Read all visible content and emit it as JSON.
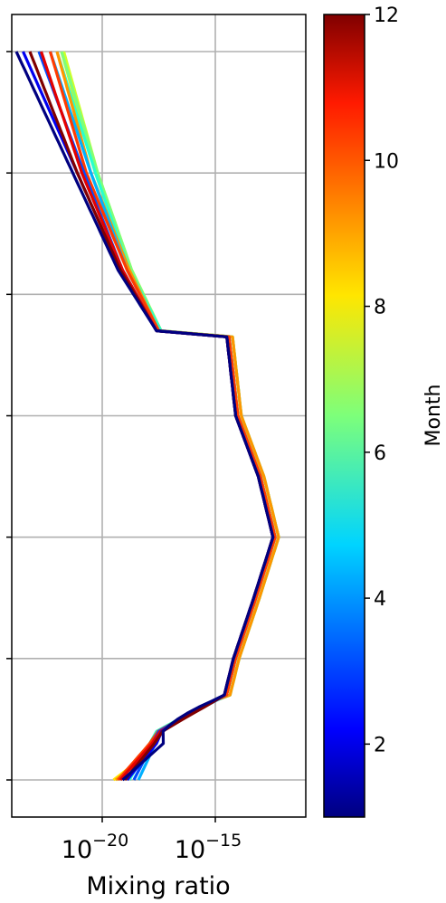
{
  "chart_data": {
    "type": "line",
    "xlabel": "Mixing ratio",
    "x_scale": "log",
    "xlim": [
      1e-24,
      1e-11
    ],
    "x_ticks": [
      {
        "value": 1e-20,
        "base": "10",
        "exp": "−20"
      },
      {
        "value": 1e-15,
        "base": "10",
        "exp": "−15"
      }
    ],
    "y_scale": "linear",
    "ylim": [
      0.5,
      -0.5
    ],
    "y_tick_values": [
      0,
      1,
      2,
      3,
      4,
      5,
      6
    ],
    "y_tick_labels_shown": false,
    "grid": true,
    "colorbar": {
      "label": "Month",
      "colormap": "jet",
      "range": [
        1,
        12
      ],
      "ticks": [
        "2",
        "4",
        "6",
        "8",
        "10",
        "12"
      ]
    },
    "base_profile": [
      {
        "level": 0.0,
        "log_mr": -16.9
      },
      {
        "level": 0.5,
        "log_mr": -16.8
      },
      {
        "level": 1.0,
        "log_mr": -16.7
      },
      {
        "level": 1.5,
        "log_mr": -16.2
      },
      {
        "level": 2.0,
        "log_mr": -14.6
      },
      {
        "level": 2.5,
        "log_mr": -14.3
      },
      {
        "level": 3.0,
        "log_mr": -14.0
      },
      {
        "level": 3.5,
        "log_mr": -13.0
      },
      {
        "level": 4.0,
        "log_mr": -12.35
      },
      {
        "level": 4.5,
        "log_mr": -13.2
      },
      {
        "level": 5.0,
        "log_mr": -14.1
      },
      {
        "level": 5.3,
        "log_mr": -14.5
      },
      {
        "level": 5.6,
        "log_mr": -15.8
      },
      {
        "level": 5.8,
        "log_mr": -17.8
      },
      {
        "level": 6.0,
        "log_mr": -19.2
      }
    ],
    "series": [
      {
        "month": 1,
        "color": "#000080",
        "profile": [
          [
            0,
            -23.8
          ],
          [
            1,
            -21.3
          ],
          [
            1.8,
            -19.3
          ],
          [
            2.3,
            -17.6
          ],
          [
            5.7,
            -17.3
          ],
          [
            6,
            -19.1
          ]
        ]
      },
      {
        "month": 2,
        "color": "#0000f1",
        "profile": [
          [
            0,
            -23.5
          ],
          [
            1,
            -21.1
          ],
          [
            1.8,
            -19.2
          ],
          [
            2.3,
            -17.6
          ],
          [
            5.4,
            -16.9
          ],
          [
            5.7,
            -17.6
          ],
          [
            6,
            -18.9
          ]
        ]
      },
      {
        "month": 3,
        "color": "#004cff",
        "profile": [
          [
            0,
            -22.8
          ],
          [
            1,
            -20.8
          ],
          [
            1.8,
            -19.1
          ],
          [
            2.3,
            -17.6
          ],
          [
            5.3,
            -16.4
          ],
          [
            5.6,
            -17.5
          ],
          [
            6,
            -18.6
          ]
        ]
      },
      {
        "month": 4,
        "color": "#00b0ff",
        "profile": [
          [
            0,
            -22.3
          ],
          [
            1,
            -20.5
          ],
          [
            1.8,
            -18.9
          ],
          [
            2.3,
            -17.5
          ],
          [
            5.3,
            -16.3
          ],
          [
            5.6,
            -17.4
          ],
          [
            6,
            -18.4
          ]
        ]
      },
      {
        "month": 5,
        "color": "#29ffce",
        "profile": [
          [
            0,
            -22.0
          ],
          [
            1,
            -20.3
          ],
          [
            1.8,
            -18.8
          ],
          [
            2.3,
            -17.4
          ],
          [
            5.3,
            -16.5
          ],
          [
            5.6,
            -17.6
          ],
          [
            6,
            -18.8
          ]
        ]
      },
      {
        "month": 6,
        "color": "#7dff7a",
        "profile": [
          [
            0,
            -21.8
          ],
          [
            1,
            -20.2
          ],
          [
            1.8,
            -18.7
          ],
          [
            2.3,
            -17.4
          ],
          [
            5.3,
            -16.6
          ],
          [
            5.7,
            -17.9
          ],
          [
            6,
            -19.2
          ]
        ]
      },
      {
        "month": 7,
        "color": "#ceff29",
        "profile": [
          [
            0,
            -21.7
          ],
          [
            1,
            -20.2
          ],
          [
            1.8,
            -18.7
          ],
          [
            2.3,
            -17.4
          ],
          [
            5.4,
            -16.8
          ],
          [
            5.8,
            -18.0
          ],
          [
            6,
            -19.4
          ]
        ]
      },
      {
        "month": 8,
        "color": "#ffe500",
        "profile": [
          [
            0,
            -21.8
          ],
          [
            1,
            -20.3
          ],
          [
            1.8,
            -18.7
          ],
          [
            2.3,
            -17.4
          ],
          [
            5.4,
            -16.9
          ],
          [
            5.8,
            -18.1
          ],
          [
            6,
            -19.5
          ]
        ]
      },
      {
        "month": 9,
        "color": "#ff9600",
        "profile": [
          [
            0,
            -22.0
          ],
          [
            1,
            -20.5
          ],
          [
            1.8,
            -18.8
          ],
          [
            2.3,
            -17.5
          ],
          [
            5.4,
            -16.9
          ],
          [
            5.8,
            -18.0
          ],
          [
            6,
            -19.4
          ]
        ]
      },
      {
        "month": 10,
        "color": "#ff3b00",
        "profile": [
          [
            0,
            -22.3
          ],
          [
            1,
            -20.7
          ],
          [
            1.8,
            -18.9
          ],
          [
            2.3,
            -17.5
          ],
          [
            5.4,
            -16.8
          ],
          [
            5.7,
            -17.9
          ],
          [
            6,
            -19.3
          ]
        ]
      },
      {
        "month": 11,
        "color": "#e40000",
        "profile": [
          [
            0,
            -22.7
          ],
          [
            1,
            -20.9
          ],
          [
            1.8,
            -19.1
          ],
          [
            2.3,
            -17.6
          ],
          [
            5.4,
            -16.7
          ],
          [
            5.7,
            -17.8
          ],
          [
            6,
            -19.2
          ]
        ]
      },
      {
        "month": 12,
        "color": "#800000",
        "profile": [
          [
            0,
            -23.2
          ],
          [
            1,
            -21.1
          ],
          [
            1.8,
            -19.2
          ],
          [
            2.3,
            -17.6
          ],
          [
            5.4,
            -16.6
          ],
          [
            5.7,
            -17.7
          ],
          [
            6,
            -19.0
          ]
        ]
      }
    ]
  }
}
